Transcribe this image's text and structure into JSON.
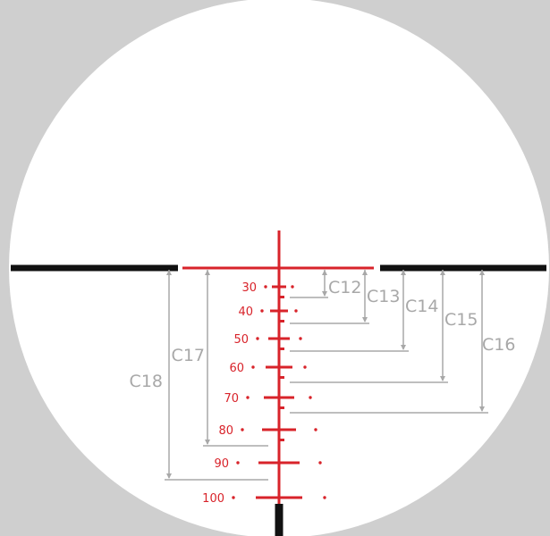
{
  "colors": {
    "background": "#cfcfcf",
    "field": "#ffffff",
    "reticle": "#d8232a",
    "post": "#111111",
    "dimension": "#a8a8a8"
  },
  "ranges": [
    {
      "label": "30",
      "tick": true,
      "dot": true
    },
    {
      "label": "40",
      "tick": true,
      "dot": true
    },
    {
      "label": "50",
      "tick": true,
      "dot": true
    },
    {
      "label": "60",
      "tick": true,
      "dot": true
    },
    {
      "label": "70",
      "tick": true,
      "dot": true
    },
    {
      "label": "80",
      "tick": true,
      "dot": true
    },
    {
      "label": "90",
      "tick": false,
      "dot": false
    },
    {
      "label": "100",
      "tick": false,
      "dot": false
    }
  ],
  "dimensions": [
    {
      "label": "C12",
      "side": "right"
    },
    {
      "label": "C13",
      "side": "right"
    },
    {
      "label": "C14",
      "side": "right"
    },
    {
      "label": "C15",
      "side": "right"
    },
    {
      "label": "C16",
      "side": "right"
    },
    {
      "label": "C17",
      "side": "left"
    },
    {
      "label": "C18",
      "side": "left"
    }
  ]
}
